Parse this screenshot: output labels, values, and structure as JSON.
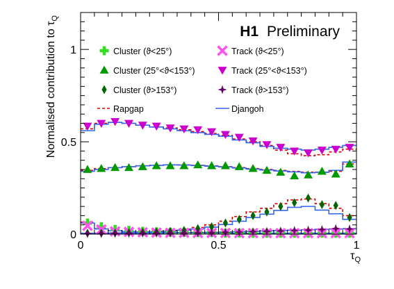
{
  "chart_data": {
    "type": "scatter",
    "title": "H1 Preliminary",
    "title_bold": "H1",
    "title_rest": "Preliminary",
    "xlabel": "τ_Q",
    "ylabel": "Normalised contribution to τ_Q",
    "xlim": [
      0,
      1
    ],
    "ylim": [
      0,
      1.2
    ],
    "xticks": [
      "0",
      "0.5",
      "1"
    ],
    "yticks": [
      "0",
      "0.5",
      "1"
    ],
    "grid": false,
    "legend_position": "top",
    "x": [
      0.025,
      0.075,
      0.125,
      0.175,
      0.225,
      0.275,
      0.325,
      0.375,
      0.425,
      0.475,
      0.525,
      0.575,
      0.625,
      0.675,
      0.725,
      0.775,
      0.825,
      0.875,
      0.925,
      0.975
    ],
    "points": [
      {
        "name": "Cluster (ϑ<25°)",
        "marker": "cross",
        "color": "#33dd22",
        "values": [
          0.06,
          0.04,
          0.025,
          0.02,
          0.015,
          0.012,
          0.01,
          0.01,
          0.008,
          0.008,
          0.006,
          0.006,
          0.005,
          0.005,
          0.005,
          0.005,
          0.005,
          0.005,
          0.005,
          0.005
        ]
      },
      {
        "name": "Track (ϑ<25°)",
        "marker": "x",
        "color": "#ff55ee",
        "values": [
          0.045,
          0.025,
          0.015,
          0.012,
          0.01,
          0.008,
          0.007,
          0.007,
          0.006,
          0.006,
          0.006,
          0.005,
          0.005,
          0.005,
          0.005,
          0.005,
          0.005,
          0.005,
          0.005,
          0.005
        ]
      },
      {
        "name": "Cluster (25°<ϑ<153°)",
        "marker": "triangle-up",
        "color": "#009900",
        "values": [
          0.35,
          0.355,
          0.36,
          0.36,
          0.365,
          0.37,
          0.37,
          0.37,
          0.375,
          0.37,
          0.37,
          0.365,
          0.355,
          0.345,
          0.335,
          0.315,
          0.32,
          0.34,
          0.325,
          0.38
        ]
      },
      {
        "name": "Track (25°<ϑ<153°)",
        "marker": "triangle-down",
        "color": "#cc00cc",
        "values": [
          0.585,
          0.6,
          0.61,
          0.6,
          0.59,
          0.585,
          0.575,
          0.57,
          0.565,
          0.555,
          0.54,
          0.525,
          0.505,
          0.485,
          0.47,
          0.45,
          0.44,
          0.455,
          0.46,
          0.47
        ]
      },
      {
        "name": "Cluster (ϑ>153°)",
        "marker": "diamond",
        "color": "#006600",
        "values": [
          0.005,
          0.005,
          0.006,
          0.008,
          0.01,
          0.012,
          0.015,
          0.02,
          0.03,
          0.04,
          0.06,
          0.08,
          0.1,
          0.12,
          0.15,
          0.17,
          0.195,
          0.16,
          0.155,
          0.09
        ]
      },
      {
        "name": "Track (ϑ>153°)",
        "marker": "star",
        "color": "#660066",
        "values": [
          0.003,
          0.003,
          0.004,
          0.004,
          0.005,
          0.005,
          0.006,
          0.006,
          0.007,
          0.008,
          0.01,
          0.011,
          0.013,
          0.015,
          0.017,
          0.02,
          0.022,
          0.025,
          0.03,
          0.028
        ]
      }
    ],
    "histograms": [
      {
        "name": "Rapgap",
        "style": "dashed",
        "color": "#dd0000",
        "groups": [
          [
            0.065,
            0.03,
            0.02,
            0.015,
            0.012,
            0.01,
            0.009,
            0.008,
            0.007,
            0.007,
            0.006,
            0.006,
            0.005,
            0.005,
            0.005,
            0.005,
            0.005,
            0.005,
            0.005,
            0.005
          ],
          [
            0.345,
            0.355,
            0.36,
            0.365,
            0.37,
            0.372,
            0.375,
            0.375,
            0.372,
            0.37,
            0.365,
            0.36,
            0.355,
            0.35,
            0.345,
            0.34,
            0.335,
            0.335,
            0.34,
            0.38
          ],
          [
            0.57,
            0.6,
            0.605,
            0.6,
            0.59,
            0.58,
            0.575,
            0.565,
            0.555,
            0.545,
            0.535,
            0.515,
            0.5,
            0.48,
            0.455,
            0.435,
            0.425,
            0.43,
            0.445,
            0.46
          ],
          [
            0.005,
            0.005,
            0.007,
            0.01,
            0.013,
            0.016,
            0.02,
            0.027,
            0.036,
            0.05,
            0.07,
            0.095,
            0.12,
            0.14,
            0.165,
            0.185,
            0.19,
            0.165,
            0.14,
            0.1
          ],
          [
            0.003,
            0.003,
            0.004,
            0.005,
            0.005,
            0.006,
            0.007,
            0.008,
            0.009,
            0.01,
            0.012,
            0.014,
            0.016,
            0.018,
            0.02,
            0.022,
            0.024,
            0.026,
            0.028,
            0.03
          ]
        ]
      },
      {
        "name": "Djangoh",
        "style": "solid",
        "color": "#3366ee",
        "groups": [
          [
            0.06,
            0.028,
            0.018,
            0.014,
            0.011,
            0.009,
            0.008,
            0.007,
            0.007,
            0.006,
            0.006,
            0.005,
            0.005,
            0.005,
            0.005,
            0.005,
            0.005,
            0.005,
            0.005,
            0.005
          ],
          [
            0.34,
            0.35,
            0.36,
            0.365,
            0.37,
            0.372,
            0.375,
            0.374,
            0.372,
            0.368,
            0.364,
            0.358,
            0.352,
            0.347,
            0.342,
            0.337,
            0.332,
            0.335,
            0.345,
            0.39
          ],
          [
            0.56,
            0.595,
            0.605,
            0.6,
            0.59,
            0.58,
            0.57,
            0.56,
            0.55,
            0.54,
            0.53,
            0.51,
            0.495,
            0.475,
            0.465,
            0.46,
            0.455,
            0.46,
            0.47,
            0.48
          ],
          [
            0.004,
            0.005,
            0.006,
            0.008,
            0.01,
            0.013,
            0.016,
            0.021,
            0.028,
            0.038,
            0.052,
            0.07,
            0.09,
            0.108,
            0.128,
            0.145,
            0.15,
            0.13,
            0.11,
            0.08
          ],
          [
            0.002,
            0.002,
            0.003,
            0.004,
            0.004,
            0.005,
            0.006,
            0.007,
            0.008,
            0.009,
            0.011,
            0.013,
            0.015,
            0.017,
            0.019,
            0.021,
            0.023,
            0.025,
            0.027,
            0.029
          ]
        ]
      }
    ],
    "legend": [
      {
        "label": "Cluster (ϑ<25°)",
        "series": "Cluster (ϑ<25°)"
      },
      {
        "label": "Track (ϑ<25°)",
        "series": "Track (ϑ<25°)"
      },
      {
        "label": "Cluster (25°<ϑ<153°)",
        "series": "Cluster (25°<ϑ<153°)"
      },
      {
        "label": "Track (25°<ϑ<153°)",
        "series": "Track (25°<ϑ<153°)"
      },
      {
        "label": "Cluster (ϑ>153°)",
        "series": "Cluster (ϑ>153°)"
      },
      {
        "label": "Track (ϑ>153°)",
        "series": "Track (ϑ>153°)"
      },
      {
        "label": "Rapgap",
        "series": "Rapgap"
      },
      {
        "label": "Djangoh",
        "series": "Djangoh"
      }
    ]
  }
}
